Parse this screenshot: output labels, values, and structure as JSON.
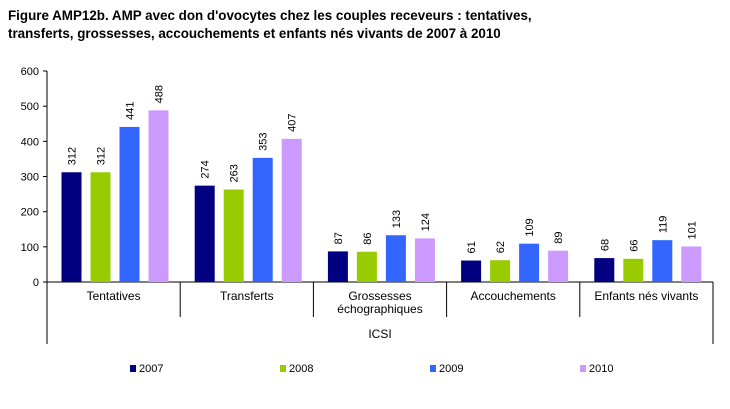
{
  "title_lines": [
    "Figure AMP12b. AMP avec don d'ovocytes chez les couples receveurs : tentatives,",
    "transferts, grossesses, accouchements et enfants nés vivants de  2007 à 2010"
  ],
  "chart_data": {
    "type": "bar",
    "title": "Figure AMP12b. AMP avec don d'ovocytes chez les couples receveurs : tentatives, transferts, grossesses, accouchements et enfants nés vivants de  2007 à 2010",
    "xlabel": "ICSI",
    "ylabel": "",
    "ylim": [
      0,
      600
    ],
    "yticks": [
      "0",
      "100",
      "200",
      "300",
      "400",
      "500",
      "600"
    ],
    "grid": false,
    "legend_position": "bottom",
    "categories": [
      [
        "Tentatives"
      ],
      [
        "Transferts"
      ],
      [
        "Grossesses",
        "échographiques"
      ],
      [
        "Accouchements"
      ],
      [
        "Enfants nés vivants"
      ]
    ],
    "series": [
      {
        "name": "2007",
        "color": "#000080",
        "values": [
          312,
          274,
          87,
          61,
          68
        ]
      },
      {
        "name": "2008",
        "color": "#99CC00",
        "values": [
          312,
          263,
          86,
          62,
          66
        ]
      },
      {
        "name": "2009",
        "color": "#3366FF",
        "values": [
          441,
          353,
          133,
          109,
          119
        ]
      },
      {
        "name": "2010",
        "color": "#CC99FF",
        "values": [
          488,
          407,
          124,
          89,
          101
        ]
      }
    ]
  }
}
